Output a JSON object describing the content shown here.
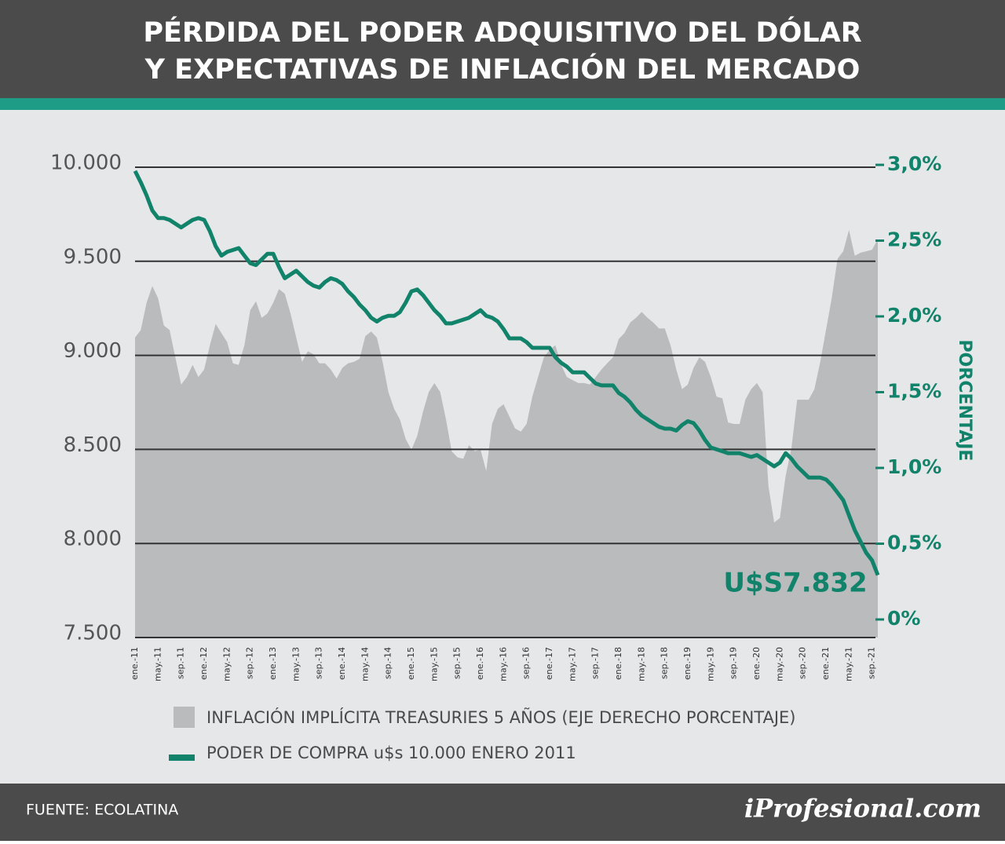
{
  "chart_data": {
    "type": "combo",
    "title": [
      "PÉRDIDA DEL PODER ADQUISITIVO DEL DÓLAR",
      "Y EXPECTATIVAS DE INFLACIÓN DEL MERCADO"
    ],
    "y2_label": "PORCENTAJE",
    "categories": [
      "ene.-11",
      null,
      null,
      null,
      "may.-11",
      null,
      null,
      null,
      "sep.-11",
      null,
      null,
      null,
      "ene.-12",
      null,
      null,
      null,
      "may.-12",
      null,
      null,
      null,
      "sep.-12",
      null,
      null,
      null,
      "ene.-13",
      null,
      null,
      null,
      "may.-13",
      null,
      null,
      null,
      "sep.-13",
      null,
      null,
      null,
      "ene.-14",
      null,
      null,
      null,
      "may.-14",
      null,
      null,
      null,
      "sep.-14",
      null,
      null,
      null,
      "ene.-15",
      null,
      null,
      null,
      "may.-15",
      null,
      null,
      null,
      "sep.-15",
      null,
      null,
      null,
      "ene.-16",
      null,
      null,
      null,
      "may.-16",
      null,
      null,
      null,
      "sep.-16",
      null,
      null,
      null,
      "ene.-17",
      null,
      null,
      null,
      "may.-17",
      null,
      null,
      null,
      "sep.-17",
      null,
      null,
      null,
      "ene.-18",
      null,
      null,
      null,
      "may.-18",
      null,
      null,
      null,
      "sep.-18",
      null,
      null,
      null,
      "ene.-19",
      null,
      null,
      null,
      "may.-19",
      null,
      null,
      null,
      "sep.-19",
      null,
      null,
      null,
      "ene.-20",
      null,
      null,
      null,
      "may.-20",
      null,
      null,
      null,
      "sep.-20",
      null,
      null,
      null,
      "ene.-21",
      null,
      null,
      null,
      "may.-21",
      null,
      null,
      null,
      "sep.-21",
      null
    ],
    "series": [
      {
        "name": "INFLACIÓN IMPLÍCITA TREASURIES 5 AÑOS (EJE DERECHO PORCENTAJE)",
        "type": "area",
        "axis": "y2",
        "color": "#b9bbbd",
        "values": [
          1.86,
          1.91,
          2.09,
          2.2,
          2.12,
          1.94,
          1.91,
          1.73,
          1.55,
          1.6,
          1.68,
          1.6,
          1.65,
          1.81,
          1.95,
          1.89,
          1.83,
          1.69,
          1.68,
          1.81,
          2.04,
          2.1,
          1.99,
          2.02,
          2.09,
          2.18,
          2.15,
          2.02,
          1.86,
          1.7,
          1.77,
          1.75,
          1.69,
          1.69,
          1.65,
          1.59,
          1.66,
          1.69,
          1.7,
          1.72,
          1.87,
          1.9,
          1.86,
          1.7,
          1.5,
          1.39,
          1.32,
          1.19,
          1.12,
          1.21,
          1.37,
          1.5,
          1.56,
          1.5,
          1.32,
          1.11,
          1.07,
          1.06,
          1.15,
          1.11,
          1.12,
          0.98,
          1.29,
          1.39,
          1.42,
          1.34,
          1.26,
          1.24,
          1.29,
          1.47,
          1.6,
          1.73,
          1.78,
          1.81,
          1.68,
          1.6,
          1.58,
          1.56,
          1.56,
          1.55,
          1.6,
          1.65,
          1.69,
          1.73,
          1.85,
          1.89,
          1.96,
          1.99,
          2.03,
          1.99,
          1.96,
          1.92,
          1.92,
          1.81,
          1.65,
          1.52,
          1.55,
          1.66,
          1.73,
          1.7,
          1.6,
          1.47,
          1.46,
          1.3,
          1.29,
          1.29,
          1.45,
          1.52,
          1.56,
          1.5,
          0.88,
          0.64,
          0.67,
          0.95,
          1.13,
          1.45,
          1.45,
          1.45,
          1.52,
          1.7,
          1.91,
          2.12,
          2.38,
          2.43,
          2.57,
          2.4,
          2.42,
          2.43,
          2.44,
          2.51
        ]
      },
      {
        "name": "PODER DE COMPRA u$s 10.000 ENERO 2011",
        "type": "line",
        "axis": "y",
        "color": "#12836b",
        "values": [
          9980,
          9920,
          9850,
          9770,
          9730,
          9730,
          9720,
          9700,
          9680,
          9700,
          9720,
          9730,
          9720,
          9660,
          9580,
          9530,
          9550,
          9560,
          9570,
          9530,
          9490,
          9480,
          9510,
          9540,
          9540,
          9470,
          9410,
          9430,
          9450,
          9420,
          9390,
          9370,
          9360,
          9390,
          9410,
          9400,
          9380,
          9340,
          9310,
          9270,
          9240,
          9200,
          9180,
          9200,
          9210,
          9210,
          9230,
          9280,
          9340,
          9350,
          9320,
          9280,
          9240,
          9210,
          9170,
          9170,
          9180,
          9190,
          9200,
          9220,
          9240,
          9210,
          9200,
          9180,
          9140,
          9090,
          9090,
          9090,
          9070,
          9040,
          9040,
          9040,
          9040,
          8990,
          8960,
          8940,
          8910,
          8910,
          8910,
          8880,
          8850,
          8840,
          8840,
          8840,
          8800,
          8780,
          8750,
          8710,
          8680,
          8660,
          8640,
          8620,
          8610,
          8610,
          8600,
          8630,
          8650,
          8640,
          8600,
          8550,
          8510,
          8500,
          8490,
          8480,
          8480,
          8480,
          8470,
          8460,
          8470,
          8450,
          8430,
          8410,
          8430,
          8480,
          8450,
          8410,
          8380,
          8350,
          8350,
          8350,
          8340,
          8310,
          8270,
          8230,
          8150,
          8070,
          8010,
          7950,
          7910,
          7832
        ]
      }
    ],
    "annotations": [
      {
        "text": "U$S7.832"
      }
    ],
    "ylim": [
      7500,
      10000
    ],
    "yticks": [
      {
        "value": 7500,
        "label": "7.500"
      },
      {
        "value": 8000,
        "label": "8.000"
      },
      {
        "value": 8500,
        "label": "8.500"
      },
      {
        "value": 9000,
        "label": "9.000"
      },
      {
        "value": 9500,
        "label": "9.500"
      },
      {
        "value": 10000,
        "label": "10.000"
      }
    ],
    "y2lim": [
      0,
      3
    ],
    "y2ticks": [
      {
        "value": 0,
        "label": "0%"
      },
      {
        "value": 0.5,
        "label": "0,5%"
      },
      {
        "value": 1,
        "label": "1,0%"
      },
      {
        "value": 1.5,
        "label": "1,5%"
      },
      {
        "value": 2,
        "label": "2,0%"
      },
      {
        "value": 2.5,
        "label": "2,5%"
      },
      {
        "value": 3,
        "label": "3,0%"
      }
    ],
    "grid": true
  },
  "footer": {
    "source": "FUENTE:  ECOLATINA",
    "brand": "iProfesional.com"
  }
}
